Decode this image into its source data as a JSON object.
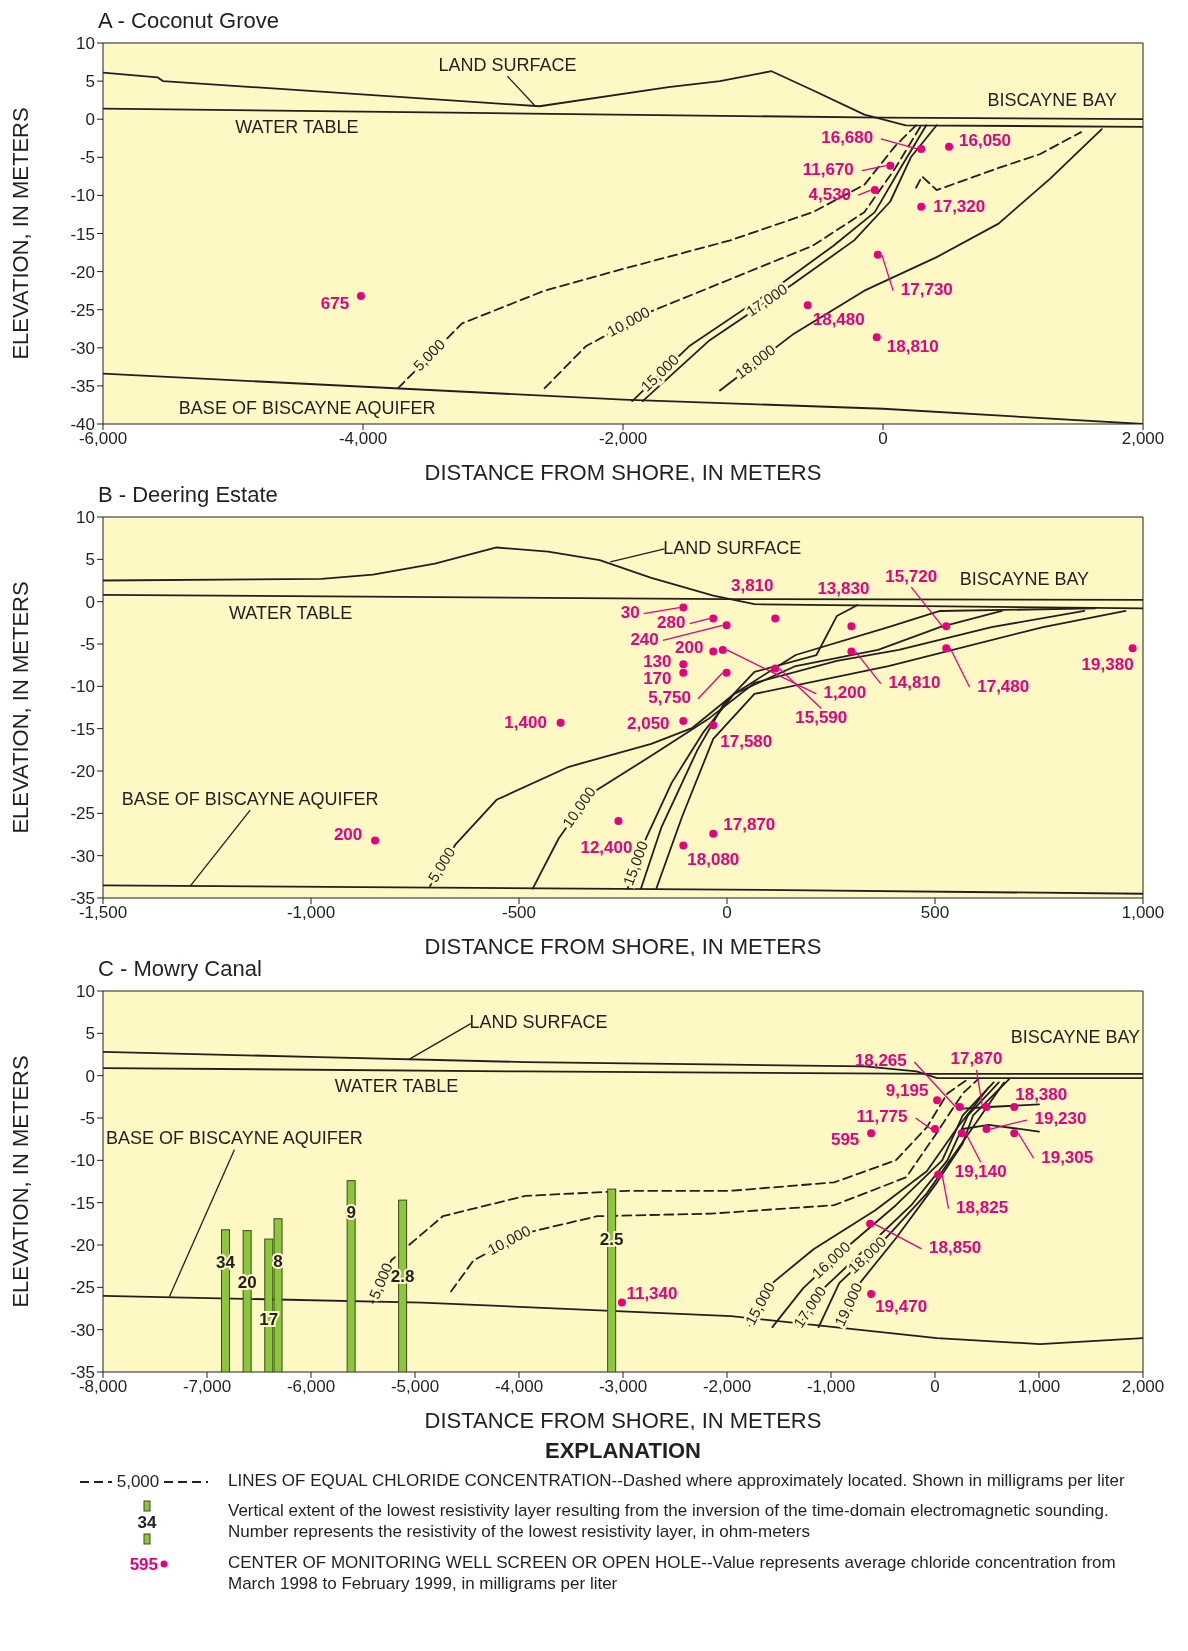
{
  "chart_data": [
    {
      "type": "line",
      "title": "A - Coconut Grove",
      "xlabel": "DISTANCE FROM SHORE, IN METERS",
      "ylabel": "ELEVATION, IN METERS",
      "xlim": [
        -6000,
        2000
      ],
      "ylim": [
        -40,
        10
      ],
      "xticks": [
        {
          "value": -6000,
          "label": "-6,000"
        },
        {
          "value": -4000,
          "label": "-4,000"
        },
        {
          "value": -2000,
          "label": "-2,000"
        },
        0,
        {
          "value": 2000,
          "label": "2,000"
        }
      ],
      "yticks": [
        10,
        5,
        0,
        -5,
        -10,
        -15,
        -20,
        -25,
        -30,
        -35,
        -40
      ],
      "series": [
        {
          "color": "#231f20",
          "x": [
            -6000,
            -5580,
            -5540,
            -2643,
            -1650,
            -1254,
            -857,
            -540,
            -143,
            175,
            2000
          ],
          "values": [
            6.1,
            5.5,
            5,
            1.7,
            4.2,
            5,
            6.3,
            3.8,
            0.6,
            -0.8,
            -1
          ]
        },
        {
          "color": "#231f20",
          "x": [
            -6000,
            -3000,
            0,
            2000
          ],
          "values": [
            1.4,
            0.8,
            0.2,
            0
          ]
        },
        {
          "color": "#231f20",
          "x": [
            -6000,
            -2000,
            0,
            2000
          ],
          "values": [
            -33.4,
            -36.8,
            -38,
            -40
          ]
        },
        {
          "name": "5,000",
          "color": "#231f20",
          "line_style": "dashed",
          "x": [
            -3730,
            -3238,
            -2603,
            -1968,
            -1175,
            -540,
            -143,
            95,
            254
          ],
          "values": [
            -35.3,
            -26.8,
            -22.5,
            -19.5,
            -15.9,
            -12.2,
            -8.6,
            -3.5,
            -0.8
          ]
        },
        {
          "name": "10,000",
          "color": "#231f20",
          "line_style": "dashed",
          "x": [
            -2603,
            -2286,
            -1810,
            -1175,
            -540,
            -143,
            95,
            294
          ],
          "values": [
            -35.3,
            -29.8,
            -25.4,
            -21,
            -16.6,
            -12.2,
            -6.4,
            -0.8
          ]
        },
        {
          "name": "15,000",
          "color": "#231f20",
          "x": [
            -1929,
            -1492,
            -857,
            -381,
            -63,
            135,
            333
          ],
          "values": [
            -37,
            -29.8,
            -22.5,
            -16.6,
            -12.2,
            -6.4,
            -0.8
          ]
        },
        {
          "name": "17,000",
          "color": "#231f20",
          "x": [
            -1849,
            -1333,
            -698,
            -222,
            56,
            214,
            413
          ],
          "values": [
            -37,
            -29,
            -21.7,
            -15.9,
            -10.8,
            -5,
            -0.8
          ]
        },
        {
          "color": "#231f20",
          "x": [
            254,
            300,
            413,
            889,
            1206,
            1524
          ],
          "values": [
            -9,
            -7.5,
            -9.3,
            -6.4,
            -4.6,
            -1.7
          ],
          "line_style": "dashed"
        },
        {
          "name": "18,000",
          "color": "#231f20",
          "x": [
            -1254,
            -698,
            -143,
            413,
            889,
            1286,
            1683
          ],
          "values": [
            -35.6,
            -28.3,
            -22.5,
            -18.1,
            -13.7,
            -7.8,
            -1.3
          ]
        },
        {
          "type": "scatter",
          "marker": "circle",
          "color": "#e5007d",
          "x": [
            -4016,
            294,
            508,
            56,
            -63,
            294,
            -40,
            -579,
            -48
          ],
          "values": [
            -23.2,
            -3.9,
            -3.6,
            -6.1,
            -9.3,
            -11.5,
            -17.8,
            -24.4,
            -28.6
          ]
        }
      ],
      "annotations": [
        {
          "text": "LAND SURFACE",
          "x": -2643,
          "y": 1.7
        },
        {
          "text": "WATER TABLE",
          "x": -4508,
          "y": 1.1
        },
        {
          "text": "BISCAYNE BAY",
          "x": 1302,
          "y": 0.1
        },
        {
          "text": "BASE OF BISCAYNE AQUIFER",
          "x": -4429,
          "y": -35.2
        },
        {
          "text": "675",
          "x": -4016,
          "y": -23.2
        },
        {
          "text": "16,680",
          "x": 294,
          "y": -3.9
        },
        {
          "text": "16,050",
          "x": 508,
          "y": -3.6
        },
        {
          "text": "11,670",
          "x": 56,
          "y": -6.1
        },
        {
          "text": "4,530",
          "x": -63,
          "y": -9.3
        },
        {
          "text": "17,320",
          "x": 294,
          "y": -11.5
        },
        {
          "text": "17,730",
          "x": -40,
          "y": -17.8
        },
        {
          "text": "18,480",
          "x": -579,
          "y": -24.4
        },
        {
          "text": "18,810",
          "x": -48,
          "y": -28.6
        }
      ]
    },
    {
      "type": "line",
      "title": "B - Deering Estate",
      "xlabel": "DISTANCE FROM SHORE, IN METERS",
      "ylabel": "ELEVATION, IN METERS",
      "xlim": [
        -1500,
        1000
      ],
      "ylim": [
        -35,
        10
      ],
      "xticks": [
        {
          "value": -1500,
          "label": "-1,500"
        },
        {
          "value": -1000,
          "label": "-1,000"
        },
        -500,
        0,
        500,
        {
          "value": 1000,
          "label": "1,000"
        }
      ],
      "yticks": [
        10,
        5,
        0,
        -5,
        -10,
        -15,
        -20,
        -25,
        -30,
        -35
      ],
      "series": [
        {
          "color": "#231f20",
          "x": [
            -1500,
            -975,
            -851,
            -702,
            -554,
            -430,
            -306,
            -182,
            -33,
            66,
            1000
          ],
          "values": [
            2.5,
            2.7,
            3.2,
            4.5,
            6.4,
            5.9,
            4.9,
            2.8,
            0.7,
            -0.3,
            -0.8
          ]
        },
        {
          "color": "#231f20",
          "x": [
            -1500,
            0,
            1000
          ],
          "values": [
            0.8,
            0.3,
            0.2
          ]
        },
        {
          "color": "#231f20",
          "x": [
            -1500,
            0,
            1000
          ],
          "values": [
            -33.5,
            -34,
            -34.5
          ]
        },
        {
          "name": "5,000",
          "color": "#231f20",
          "x": [
            -714,
            -653,
            -554,
            -380,
            -182,
            -83,
            17,
            165,
            388,
            512,
            884
          ],
          "values": [
            -33.6,
            -28.7,
            -23.4,
            -19.5,
            -16.8,
            -14.9,
            -10.9,
            -6.3,
            -3,
            -1.1,
            -0.8
          ]
        },
        {
          "name": "10,000",
          "color": "#231f20",
          "x": [
            -467,
            -405,
            -331,
            -182,
            -46,
            66,
            264,
            413,
            636,
            859
          ],
          "values": [
            -33.9,
            -28,
            -22.8,
            -18.2,
            -13.9,
            -9.6,
            -7,
            -5.7,
            -3,
            -1.1
          ]
        },
        {
          "name": "15,000",
          "color": "#231f20",
          "x": [
            -239,
            -195,
            -133,
            -58,
            17,
            165,
            363,
            512,
            661
          ],
          "values": [
            -33.9,
            -28,
            -21.4,
            -15.5,
            -10.9,
            -7.6,
            -5.7,
            -3,
            -1.1
          ]
        },
        {
          "color": "#231f20",
          "x": [
            -207,
            -158,
            -71,
            -9,
            66,
            215,
            264,
            314
          ],
          "values": [
            -33.9,
            -26.7,
            -17.5,
            -12.2,
            -8.3,
            -6.3,
            -1.7,
            -0.4
          ]
        },
        {
          "color": "#231f20",
          "x": [
            -170,
            -108,
            -33,
            66,
            388,
            760,
            958
          ],
          "values": [
            -33.9,
            -25.4,
            -16.2,
            -10.9,
            -7.6,
            -3,
            -1.1
          ]
        },
        {
          "type": "scatter",
          "marker": "circle",
          "color": "#e5007d",
          "x": [
            -105,
            -33,
            -1,
            -33,
            -105,
            -105,
            -1,
            -400,
            -105,
            -33,
            -261,
            -105,
            -33,
            -846,
            116,
            299,
            527,
            -10,
            116,
            299,
            527,
            975
          ],
          "values": [
            -0.7,
            -2,
            -2.8,
            -5.9,
            -7.4,
            -8.4,
            -8.4,
            -14.3,
            -14.1,
            -14.6,
            -25.9,
            -28.8,
            -27.4,
            -28.2,
            -2,
            -2.9,
            -2.9,
            -5.7,
            -7.9,
            -5.9,
            -5.5,
            -5.5
          ]
        }
      ],
      "annotations": [
        {
          "text": "LAND SURFACE",
          "x": -290,
          "y": 4.7
        },
        {
          "text": "WATER TABLE",
          "x": -1049,
          "y": 0.6
        },
        {
          "text": "BISCAYNE BAY",
          "x": 715,
          "y": 0.2
        },
        {
          "text": "BASE OF BISCAYNE AQUIFER",
          "x": -1300,
          "y": -33.6
        },
        {
          "text": "30",
          "x": -105,
          "y": -0.7
        },
        {
          "text": "280",
          "x": -33,
          "y": -2
        },
        {
          "text": "240",
          "x": -1,
          "y": -2.8
        },
        {
          "text": "200",
          "x": -33,
          "y": -5.9
        },
        {
          "text": "130",
          "x": -105,
          "y": -7.4
        },
        {
          "text": "170",
          "x": -105,
          "y": -8.4
        },
        {
          "text": "5,750",
          "x": -1,
          "y": -8.4
        },
        {
          "text": "1,400",
          "x": -400,
          "y": -14.3
        },
        {
          "text": "2,050",
          "x": -105,
          "y": -14.1
        },
        {
          "text": "17,580",
          "x": -33,
          "y": -14.6
        },
        {
          "text": "12,400",
          "x": -261,
          "y": -25.9
        },
        {
          "text": "18,080",
          "x": -105,
          "y": -28.8
        },
        {
          "text": "17,870",
          "x": -33,
          "y": -27.4
        },
        {
          "text": "200",
          "x": -846,
          "y": -28.2
        },
        {
          "text": "3,810",
          "x": 116,
          "y": -2
        },
        {
          "text": "13,830",
          "x": 299,
          "y": -2.9
        },
        {
          "text": "15,720",
          "x": 527,
          "y": -2.9
        },
        {
          "text": "1,200",
          "x": -10,
          "y": -5.7
        },
        {
          "text": "15,590",
          "x": 116,
          "y": -7.9
        },
        {
          "text": "14,810",
          "x": 299,
          "y": -5.9
        },
        {
          "text": "17,480",
          "x": 527,
          "y": -5.5
        },
        {
          "text": "19,380",
          "x": 975,
          "y": -5.5
        }
      ]
    },
    {
      "type": "line",
      "title": "C - Mowry Canal",
      "xlabel": "DISTANCE FROM SHORE, IN METERS",
      "ylabel": "ELEVATION, IN METERS",
      "xlim": [
        -8000,
        2000
      ],
      "ylim": [
        -35,
        10
      ],
      "xticks": [
        {
          "value": -8000,
          "label": "-8,000"
        },
        {
          "value": -7000,
          "label": "-7,000"
        },
        {
          "value": -6000,
          "label": "-6,000"
        },
        {
          "value": -5000,
          "label": "-5,000"
        },
        {
          "value": -4000,
          "label": "-4,000"
        },
        {
          "value": -3000,
          "label": "-3,000"
        },
        {
          "value": -2000,
          "label": "-2,000"
        },
        {
          "value": -1000,
          "label": "-1,000"
        },
        0,
        {
          "value": 1000,
          "label": "1,000"
        },
        {
          "value": 2000,
          "label": "2,000"
        }
      ],
      "yticks": [
        10,
        5,
        0,
        -5,
        -10,
        -15,
        -20,
        -25,
        -30,
        -35
      ],
      "series": [
        {
          "color": "#231f20",
          "x": [
            -8000,
            -5921,
            -3941,
            -1960,
            -673,
            -178,
            20,
            2000
          ],
          "values": [
            2.8,
            2.2,
            1.6,
            1.3,
            1.1,
            0.5,
            -0.3,
            -0.3
          ]
        },
        {
          "color": "#231f20",
          "x": [
            -8000,
            -3941,
            20,
            2000
          ],
          "values": [
            0.9,
            0.5,
            0.2,
            0.2
          ]
        },
        {
          "color": "#231f20",
          "x": [
            -8000,
            -4931,
            -1960,
            20,
            1010,
            2000
          ],
          "values": [
            -26,
            -26.8,
            -28.4,
            -31,
            -31.7,
            -31
          ]
        },
        {
          "name": "5,000",
          "color": "#231f20",
          "line_style": "dashed",
          "x": [
            -5406,
            -5228,
            -4733,
            -3941,
            -2951,
            -1960,
            -970,
            -376,
            -79,
            119,
            317
          ],
          "values": [
            -26.8,
            -21.8,
            -16.6,
            -14.2,
            -13.6,
            -13.6,
            -12.6,
            -10,
            -6.1,
            -2.1,
            -0.4
          ]
        },
        {
          "name": "10,000",
          "color": "#231f20",
          "line_style": "dashed",
          "x": [
            -4654,
            -4436,
            -3941,
            -3248,
            -2158,
            -970,
            -277,
            20,
            267,
            416
          ],
          "values": [
            -25.5,
            -21.8,
            -18.6,
            -16.6,
            -16.3,
            -15.3,
            -12,
            -6.7,
            -2.1,
            -0.4
          ]
        },
        {
          "name": "15,000",
          "color": "#231f20",
          "x": [
            -1782,
            -1564,
            -1168,
            -574,
            -79,
            218,
            515
          ],
          "values": [
            -29.5,
            -24.5,
            -20.5,
            -15.9,
            -11.3,
            -6.1,
            -1.4
          ]
        },
        {
          "name": "16,000",
          "color": "#231f20",
          "x": [
            -1564,
            -1267,
            -871,
            -376,
            69,
            267,
            564
          ],
          "values": [
            -29.7,
            -25.1,
            -20.5,
            -15.3,
            -10,
            -4.7,
            -0.8
          ]
        },
        {
          "name": "17,000",
          "color": "#231f20",
          "x": [
            -1317,
            -1069,
            -673,
            -228,
            119,
            317,
            614
          ],
          "values": [
            -29.7,
            -25.1,
            -20.5,
            -15.3,
            -10,
            -4.7,
            -0.8
          ]
        },
        {
          "name": "18,000",
          "color": "#231f20",
          "x": [
            -1119,
            -921,
            -525,
            -79,
            218,
            663
          ],
          "values": [
            -29.7,
            -24.5,
            -19.9,
            -13.9,
            -8.7,
            -0.8
          ]
        },
        {
          "name": "19,000",
          "color": "#231f20",
          "x": [
            -921,
            -723,
            -376,
            20,
            267,
            366,
            713
          ],
          "values": [
            -29.7,
            -24.5,
            -19.2,
            -12.6,
            -8,
            -4.7,
            -0.4
          ]
        },
        {
          "color": "#231f20",
          "x": [
            267,
            515,
            1000
          ],
          "values": [
            -3.9,
            -3.7,
            -3.4
          ]
        },
        {
          "color": "#231f20",
          "x": [
            267,
            515,
            1000
          ],
          "values": [
            -6.3,
            -5.8,
            -6.6
          ]
        },
        {
          "type": "bar",
          "color": "#8cc63f",
          "x": [
            -6822,
            -6614,
            -6406,
            -6317,
            -5614,
            -5119,
            -3109
          ],
          "base": [
            -35,
            -35,
            -35,
            -35,
            -35,
            -35,
            -35
          ],
          "values": [
            16.8,
            16.7,
            15.7,
            18.1,
            22.6,
            20.3,
            21.6
          ]
        },
        {
          "type": "scatter",
          "marker": "circle",
          "color": "#e5007d",
          "x": [
            -614,
            20,
            238,
            495,
            762,
            0,
            495,
            762,
            257,
            30,
            -624,
            -614,
            -3010
          ],
          "values": [
            -6.8,
            -2.9,
            -3.7,
            -3.7,
            -3.7,
            -6.3,
            -6.3,
            -6.8,
            -6.8,
            -11.7,
            -17.5,
            -25.8,
            -26.8
          ]
        }
      ],
      "annotations": [
        {
          "text": "LAND SURFACE",
          "x": -5100,
          "y": 1.9
        },
        {
          "text": "WATER TABLE",
          "x": -5178,
          "y": 0.6
        },
        {
          "text": "BISCAYNE BAY",
          "x": 1350,
          "y": 0.2
        },
        {
          "text": "BASE OF BISCAYNE AQUIFER",
          "x": -7400,
          "y": -26.1
        },
        {
          "text": "595",
          "x": -614,
          "y": -6.8
        },
        {
          "text": "9,195",
          "x": 20,
          "y": -2.9
        },
        {
          "text": "18,265",
          "x": 238,
          "y": -3.7
        },
        {
          "text": "17,870",
          "x": 495,
          "y": -3.7
        },
        {
          "text": "18,380",
          "x": 762,
          "y": -3.7
        },
        {
          "text": "11,775",
          "x": 0,
          "y": -6.3
        },
        {
          "text": "19,230",
          "x": 495,
          "y": -6.3
        },
        {
          "text": "19,305",
          "x": 762,
          "y": -6.8
        },
        {
          "text": "19,140",
          "x": 257,
          "y": -6.8
        },
        {
          "text": "18,825",
          "x": 30,
          "y": -11.7
        },
        {
          "text": "18,850",
          "x": -624,
          "y": -17.5
        },
        {
          "text": "19,470",
          "x": -614,
          "y": -25.8
        },
        {
          "text": "11,340",
          "x": -3010,
          "y": -26.8
        },
        {
          "text": "34",
          "x": -6822,
          "y": -22.2
        },
        {
          "text": "20",
          "x": -6614,
          "y": -24.6
        },
        {
          "text": "17",
          "x": -6406,
          "y": -28.9
        },
        {
          "text": "8",
          "x": -6317,
          "y": -22.1
        },
        {
          "text": "9",
          "x": -5614,
          "y": -16.3
        },
        {
          "text": "2.8",
          "x": -5119,
          "y": -23.8
        },
        {
          "text": "2.5",
          "x": -3109,
          "y": -19.5
        },
        "EXPLANATION",
        "5,000",
        "LINES OF EQUAL CHLORIDE CONCENTRATION--Dashed where approximately located. Shown in milligrams per liter",
        "34",
        "Vertical extent of the lowest resistivity layer resulting from the inversion of the time-domain electromagnetic sounding. Number represents the resistivity of the lowest resistivity layer, in ohm-meters",
        "595",
        "CENTER OF MONITORING WELL SCREEN OR OPEN HOLE--Value represents average chloride concentration from March 1998 to February 1999, in milligrams per liter"
      ]
    }
  ]
}
